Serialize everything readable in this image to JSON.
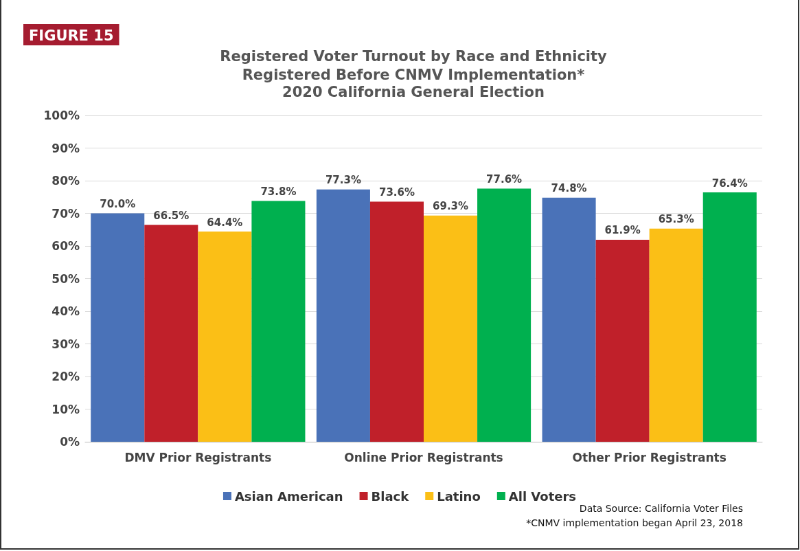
{
  "chart_data": {
    "type": "bar",
    "title": "Registered Voter Turnout by Race and Ethnicity",
    "subtitle": "Registered Before CNMV Implementation*\n2020 California General Election",
    "categories": [
      "DMV Prior Registrants",
      "Online Prior Registrants",
      "Other Prior Registrants"
    ],
    "series": [
      {
        "name": "Asian American",
        "color": "#4a72b8",
        "values": [
          70.0,
          77.3,
          74.8
        ],
        "value_labels": [
          "70.0%",
          "77.3%",
          "74.8%"
        ]
      },
      {
        "name": "Black",
        "color": "#c0202a",
        "values": [
          66.5,
          73.6,
          61.9
        ],
        "value_labels": [
          "66.5%",
          "73.6%",
          "61.9%"
        ]
      },
      {
        "name": "Latino",
        "color": "#fbbf16",
        "values": [
          64.4,
          69.3,
          65.3
        ],
        "value_labels": [
          "64.4%",
          "69.3%",
          "65.3%"
        ]
      },
      {
        "name": "All Voters",
        "color": "#00b04f",
        "values": [
          73.8,
          77.6,
          76.4
        ],
        "value_labels": [
          "73.8%",
          "77.6%",
          "76.4%"
        ]
      }
    ],
    "ylim": [
      0,
      100
    ],
    "yticks": [
      {
        "value": 0,
        "label": "0%"
      },
      {
        "value": 10,
        "label": "10%"
      },
      {
        "value": 20,
        "label": "20%"
      },
      {
        "value": 30,
        "label": "30%"
      },
      {
        "value": 40,
        "label": "40%"
      },
      {
        "value": 50,
        "label": "50%"
      },
      {
        "value": 60,
        "label": "60%"
      },
      {
        "value": 70,
        "label": "70%"
      },
      {
        "value": 80,
        "label": "80%"
      },
      {
        "value": 90,
        "label": "90%"
      },
      {
        "value": 100,
        "label": "100%"
      }
    ],
    "grid": "y",
    "legend": "bottom",
    "annotations": [
      "FIGURE 15",
      "Data Source: California Voter Files",
      "*CNMV implementation began April 23, 2018"
    ]
  }
}
